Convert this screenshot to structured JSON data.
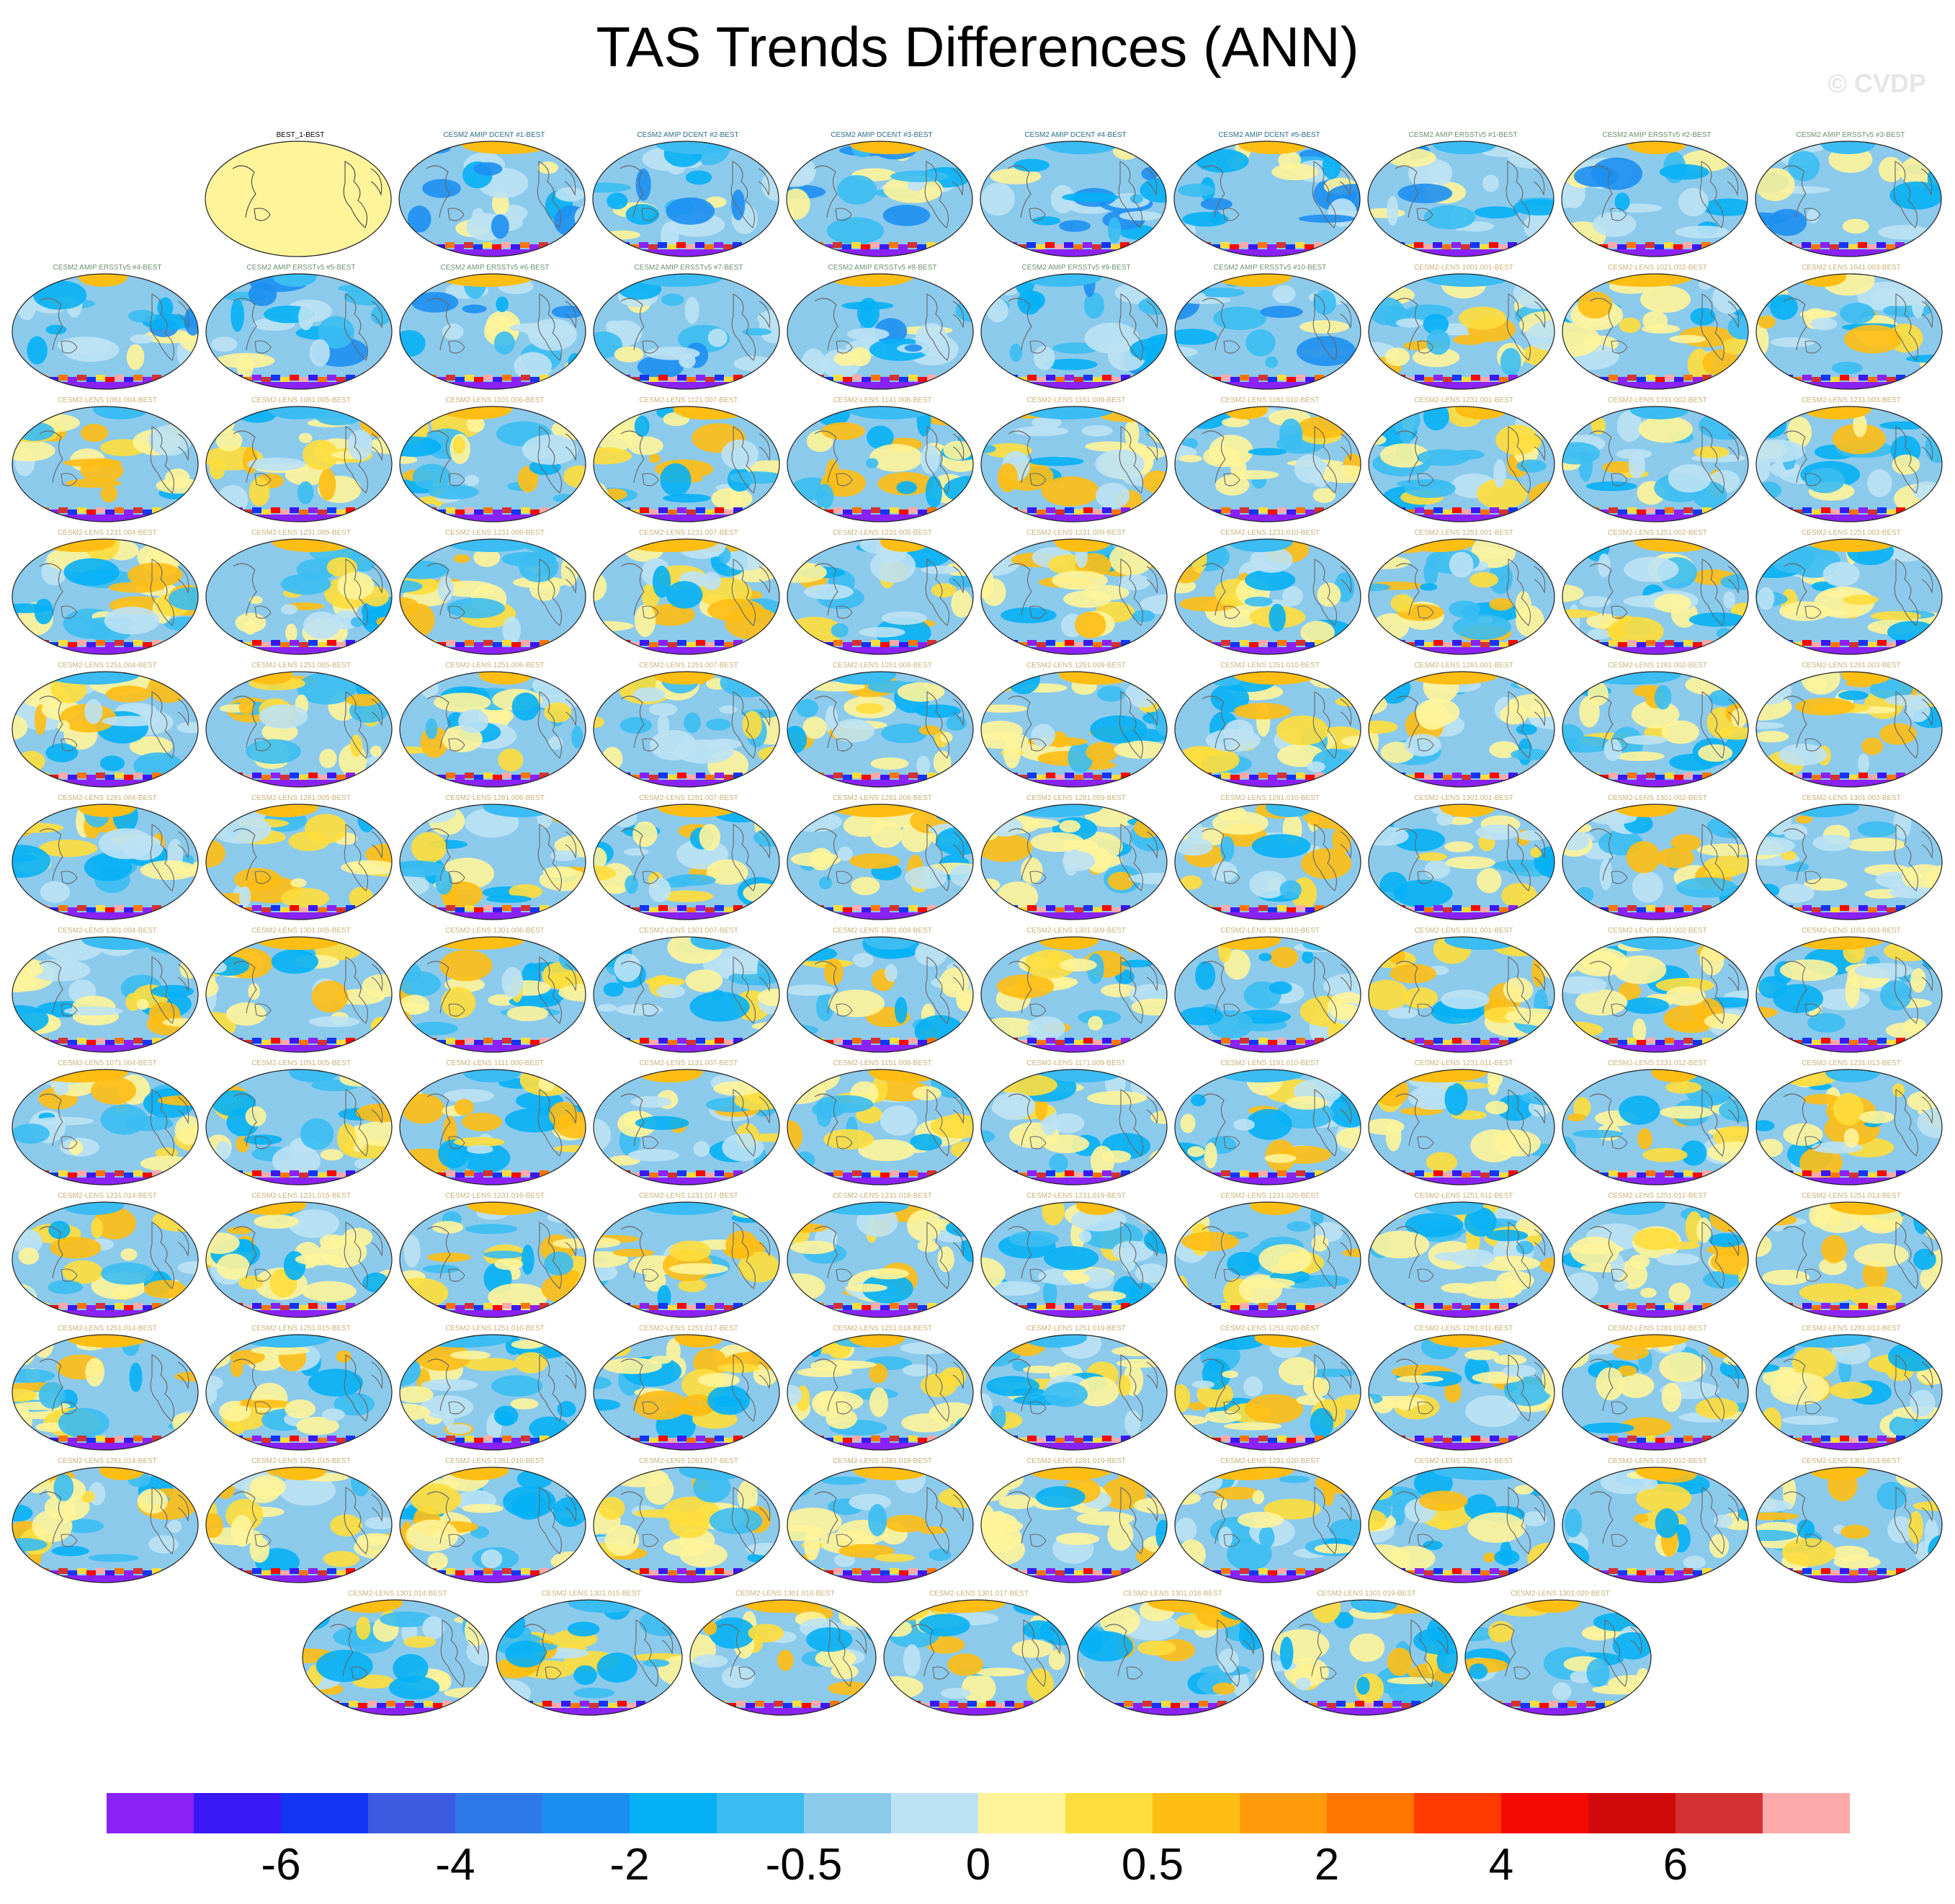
{
  "title": "TAS Trends Differences (ANN)",
  "watermark": "© CVDP",
  "panels": [
    {
      "label": "BEST_1-BEST",
      "kind": "ref"
    },
    {
      "label": "CESM2 AMIP DCENT #1-BEST",
      "kind": "amip"
    },
    {
      "label": "CESM2 AMIP DCENT #2-BEST",
      "kind": "amip"
    },
    {
      "label": "CESM2 AMIP DCENT #3-BEST",
      "kind": "amip"
    },
    {
      "label": "CESM2 AMIP DCENT #4-BEST",
      "kind": "amip"
    },
    {
      "label": "CESM2 AMIP DCENT #5-BEST",
      "kind": "amip"
    },
    {
      "label": "CESM2 AMIP ERSSTv5 #1-BEST",
      "kind": "amip2"
    },
    {
      "label": "CESM2 AMIP ERSSTv5 #2-BEST",
      "kind": "amip2"
    },
    {
      "label": "CESM2 AMIP ERSSTv5 #3-BEST",
      "kind": "amip2"
    },
    {
      "label": "CESM2 AMIP ERSSTv5 #4-BEST",
      "kind": "amip2"
    },
    {
      "label": "CESM2 AMIP ERSSTv5 #5-BEST",
      "kind": "amip2"
    },
    {
      "label": "CESM2 AMIP ERSSTv5 #6-BEST",
      "kind": "amip2"
    },
    {
      "label": "CESM2 AMIP ERSSTv5 #7-BEST",
      "kind": "amip2"
    },
    {
      "label": "CESM2 AMIP ERSSTv5 #8-BEST",
      "kind": "amip2"
    },
    {
      "label": "CESM2 AMIP ERSSTv5 #9-BEST",
      "kind": "amip2"
    },
    {
      "label": "CESM2 AMIP ERSSTv5 #10-BEST",
      "kind": "amip2"
    },
    {
      "label": "CESM2-LENS 1001.001-BEST",
      "kind": "lens"
    },
    {
      "label": "CESM2-LENS 1021.002-BEST",
      "kind": "lens"
    },
    {
      "label": "CESM2-LENS 1041.003-BEST",
      "kind": "lens"
    },
    {
      "label": "CESM2-LENS 1061.004-BEST",
      "kind": "lens"
    },
    {
      "label": "CESM2-LENS 1081.005-BEST",
      "kind": "lens"
    },
    {
      "label": "CESM2-LENS 1101.006-BEST",
      "kind": "lens"
    },
    {
      "label": "CESM2-LENS 1121.007-BEST",
      "kind": "lens"
    },
    {
      "label": "CESM2-LENS 1141.008-BEST",
      "kind": "lens"
    },
    {
      "label": "CESM2-LENS 1161.009-BEST",
      "kind": "lens"
    },
    {
      "label": "CESM2-LENS 1181.010-BEST",
      "kind": "lens"
    },
    {
      "label": "CESM2-LENS 1231.001-BEST",
      "kind": "lens"
    },
    {
      "label": "CESM2-LENS 1231.002-BEST",
      "kind": "lens"
    },
    {
      "label": "CESM2-LENS 1231.003-BEST",
      "kind": "lens"
    },
    {
      "label": "CESM2-LENS 1231.004-BEST",
      "kind": "lens"
    },
    {
      "label": "CESM2-LENS 1231.005-BEST",
      "kind": "lens"
    },
    {
      "label": "CESM2-LENS 1231.006-BEST",
      "kind": "lens"
    },
    {
      "label": "CESM2-LENS 1231.007-BEST",
      "kind": "lens"
    },
    {
      "label": "CESM2-LENS 1231.008-BEST",
      "kind": "lens"
    },
    {
      "label": "CESM2-LENS 1231.009-BEST",
      "kind": "lens"
    },
    {
      "label": "CESM2-LENS 1231.010-BEST",
      "kind": "lens"
    },
    {
      "label": "CESM2-LENS 1251.001-BEST",
      "kind": "lens"
    },
    {
      "label": "CESM2-LENS 1251.002-BEST",
      "kind": "lens"
    },
    {
      "label": "CESM2-LENS 1251.003-BEST",
      "kind": "lens"
    },
    {
      "label": "CESM2-LENS 1251.004-BEST",
      "kind": "lens"
    },
    {
      "label": "CESM2-LENS 1251.005-BEST",
      "kind": "lens"
    },
    {
      "label": "CESM2-LENS 1251.006-BEST",
      "kind": "lens"
    },
    {
      "label": "CESM2-LENS 1251.007-BEST",
      "kind": "lens"
    },
    {
      "label": "CESM2-LENS 1251.008-BEST",
      "kind": "lens"
    },
    {
      "label": "CESM2-LENS 1251.009-BEST",
      "kind": "lens"
    },
    {
      "label": "CESM2-LENS 1251.010-BEST",
      "kind": "lens"
    },
    {
      "label": "CESM2-LENS 1281.001-BEST",
      "kind": "lens"
    },
    {
      "label": "CESM2-LENS 1281.002-BEST",
      "kind": "lens"
    },
    {
      "label": "CESM2-LENS 1281.003-BEST",
      "kind": "lens"
    },
    {
      "label": "CESM2-LENS 1281.004-BEST",
      "kind": "lens"
    },
    {
      "label": "CESM2-LENS 1281.005-BEST",
      "kind": "lens"
    },
    {
      "label": "CESM2-LENS 1281.006-BEST",
      "kind": "lens"
    },
    {
      "label": "CESM2-LENS 1281.007-BEST",
      "kind": "lens"
    },
    {
      "label": "CESM2-LENS 1281.008-BEST",
      "kind": "lens"
    },
    {
      "label": "CESM2-LENS 1281.009-BEST",
      "kind": "lens"
    },
    {
      "label": "CESM2-LENS 1281.010-BEST",
      "kind": "lens"
    },
    {
      "label": "CESM2-LENS 1301.001-BEST",
      "kind": "lens"
    },
    {
      "label": "CESM2-LENS 1301.002-BEST",
      "kind": "lens"
    },
    {
      "label": "CESM2-LENS 1301.003-BEST",
      "kind": "lens"
    },
    {
      "label": "CESM2-LENS 1301.004-BEST",
      "kind": "lens"
    },
    {
      "label": "CESM2-LENS 1301.005-BEST",
      "kind": "lens"
    },
    {
      "label": "CESM2-LENS 1301.006-BEST",
      "kind": "lens"
    },
    {
      "label": "CESM2-LENS 1301.007-BEST",
      "kind": "lens"
    },
    {
      "label": "CESM2-LENS 1301.008-BEST",
      "kind": "lens"
    },
    {
      "label": "CESM2-LENS 1301.009-BEST",
      "kind": "lens"
    },
    {
      "label": "CESM2-LENS 1301.010-BEST",
      "kind": "lens"
    },
    {
      "label": "CESM2-LENS 1011.001-BEST",
      "kind": "lens"
    },
    {
      "label": "CESM2-LENS 1031.002-BEST",
      "kind": "lens"
    },
    {
      "label": "CESM2-LENS 1051.003-BEST",
      "kind": "lens"
    },
    {
      "label": "CESM2-LENS 1071.004-BEST",
      "kind": "lens"
    },
    {
      "label": "CESM2-LENS 1091.005-BEST",
      "kind": "lens"
    },
    {
      "label": "CESM2-LENS 1111.006-BEST",
      "kind": "lens"
    },
    {
      "label": "CESM2-LENS 1131.007-BEST",
      "kind": "lens"
    },
    {
      "label": "CESM2-LENS 1151.008-BEST",
      "kind": "lens"
    },
    {
      "label": "CESM2-LENS 1171.009-BEST",
      "kind": "lens"
    },
    {
      "label": "CESM2-LENS 1191.010-BEST",
      "kind": "lens"
    },
    {
      "label": "CESM2-LENS 1231.011-BEST",
      "kind": "lens"
    },
    {
      "label": "CESM2-LENS 1231.012-BEST",
      "kind": "lens"
    },
    {
      "label": "CESM2-LENS 1231.013-BEST",
      "kind": "lens"
    },
    {
      "label": "CESM2-LENS 1231.014-BEST",
      "kind": "lens"
    },
    {
      "label": "CESM2-LENS 1231.015-BEST",
      "kind": "lens"
    },
    {
      "label": "CESM2-LENS 1231.016-BEST",
      "kind": "lens"
    },
    {
      "label": "CESM2-LENS 1231.017-BEST",
      "kind": "lens"
    },
    {
      "label": "CESM2-LENS 1231.018-BEST",
      "kind": "lens"
    },
    {
      "label": "CESM2-LENS 1231.019-BEST",
      "kind": "lens"
    },
    {
      "label": "CESM2-LENS 1231.020-BEST",
      "kind": "lens"
    },
    {
      "label": "CESM2-LENS 1251.011-BEST",
      "kind": "lens"
    },
    {
      "label": "CESM2-LENS 1251.012-BEST",
      "kind": "lens"
    },
    {
      "label": "CESM2-LENS 1251.013-BEST",
      "kind": "lens"
    },
    {
      "label": "CESM2-LENS 1251.014-BEST",
      "kind": "lens"
    },
    {
      "label": "CESM2-LENS 1251.015-BEST",
      "kind": "lens"
    },
    {
      "label": "CESM2-LENS 1251.016-BEST",
      "kind": "lens"
    },
    {
      "label": "CESM2-LENS 1251.017-BEST",
      "kind": "lens"
    },
    {
      "label": "CESM2-LENS 1251.018-BEST",
      "kind": "lens"
    },
    {
      "label": "CESM2-LENS 1251.019-BEST",
      "kind": "lens"
    },
    {
      "label": "CESM2-LENS 1251.020-BEST",
      "kind": "lens"
    },
    {
      "label": "CESM2-LENS 1281.011-BEST",
      "kind": "lens"
    },
    {
      "label": "CESM2-LENS 1281.012-BEST",
      "kind": "lens"
    },
    {
      "label": "CESM2-LENS 1281.013-BEST",
      "kind": "lens"
    },
    {
      "label": "CESM2-LENS 1281.014-BEST",
      "kind": "lens"
    },
    {
      "label": "CESM2-LENS 1281.015-BEST",
      "kind": "lens"
    },
    {
      "label": "CESM2-LENS 1281.016-BEST",
      "kind": "lens"
    },
    {
      "label": "CESM2-LENS 1281.017-BEST",
      "kind": "lens"
    },
    {
      "label": "CESM2-LENS 1281.018-BEST",
      "kind": "lens"
    },
    {
      "label": "CESM2-LENS 1281.019-BEST",
      "kind": "lens"
    },
    {
      "label": "CESM2-LENS 1281.020-BEST",
      "kind": "lens"
    },
    {
      "label": "CESM2-LENS 1301.011-BEST",
      "kind": "lens"
    },
    {
      "label": "CESM2-LENS 1301.012-BEST",
      "kind": "lens"
    },
    {
      "label": "CESM2-LENS 1301.013-BEST",
      "kind": "lens"
    },
    {
      "label": "CESM2-LENS 1301.014-BEST",
      "kind": "lens"
    },
    {
      "label": "CESM2-LENS 1301.015-BEST",
      "kind": "lens"
    },
    {
      "label": "CESM2-LENS 1301.016-BEST",
      "kind": "lens"
    },
    {
      "label": "CESM2-LENS 1301.017-BEST",
      "kind": "lens"
    },
    {
      "label": "CESM2-LENS 1301.018-BEST",
      "kind": "lens"
    },
    {
      "label": "CESM2-LENS 1301.019-BEST",
      "kind": "lens"
    },
    {
      "label": "CESM2-LENS 1301.020-BEST",
      "kind": "lens"
    }
  ],
  "label_colors": {
    "ref": "#000000",
    "amip": "#2a6f8f",
    "amip2": "#6f8f6f",
    "lens": "#c8b27a"
  },
  "colorbar": {
    "colors": [
      "#8a22f5",
      "#3a18f5",
      "#1435f5",
      "#3c5be0",
      "#2f78ea",
      "#1d8ff2",
      "#06b0f5",
      "#3bbcf2",
      "#8ccaec",
      "#bde2f4",
      "#fff49a",
      "#ffde3c",
      "#ffbe14",
      "#ff9a0a",
      "#ff7500",
      "#ff3a00",
      "#f50a00",
      "#d00a0a",
      "#d43232",
      "#ffaaaa"
    ],
    "tick_labels": [
      "-6",
      "-4",
      "-2",
      "-0.5",
      "0",
      "0.5",
      "2",
      "4",
      "6"
    ]
  }
}
